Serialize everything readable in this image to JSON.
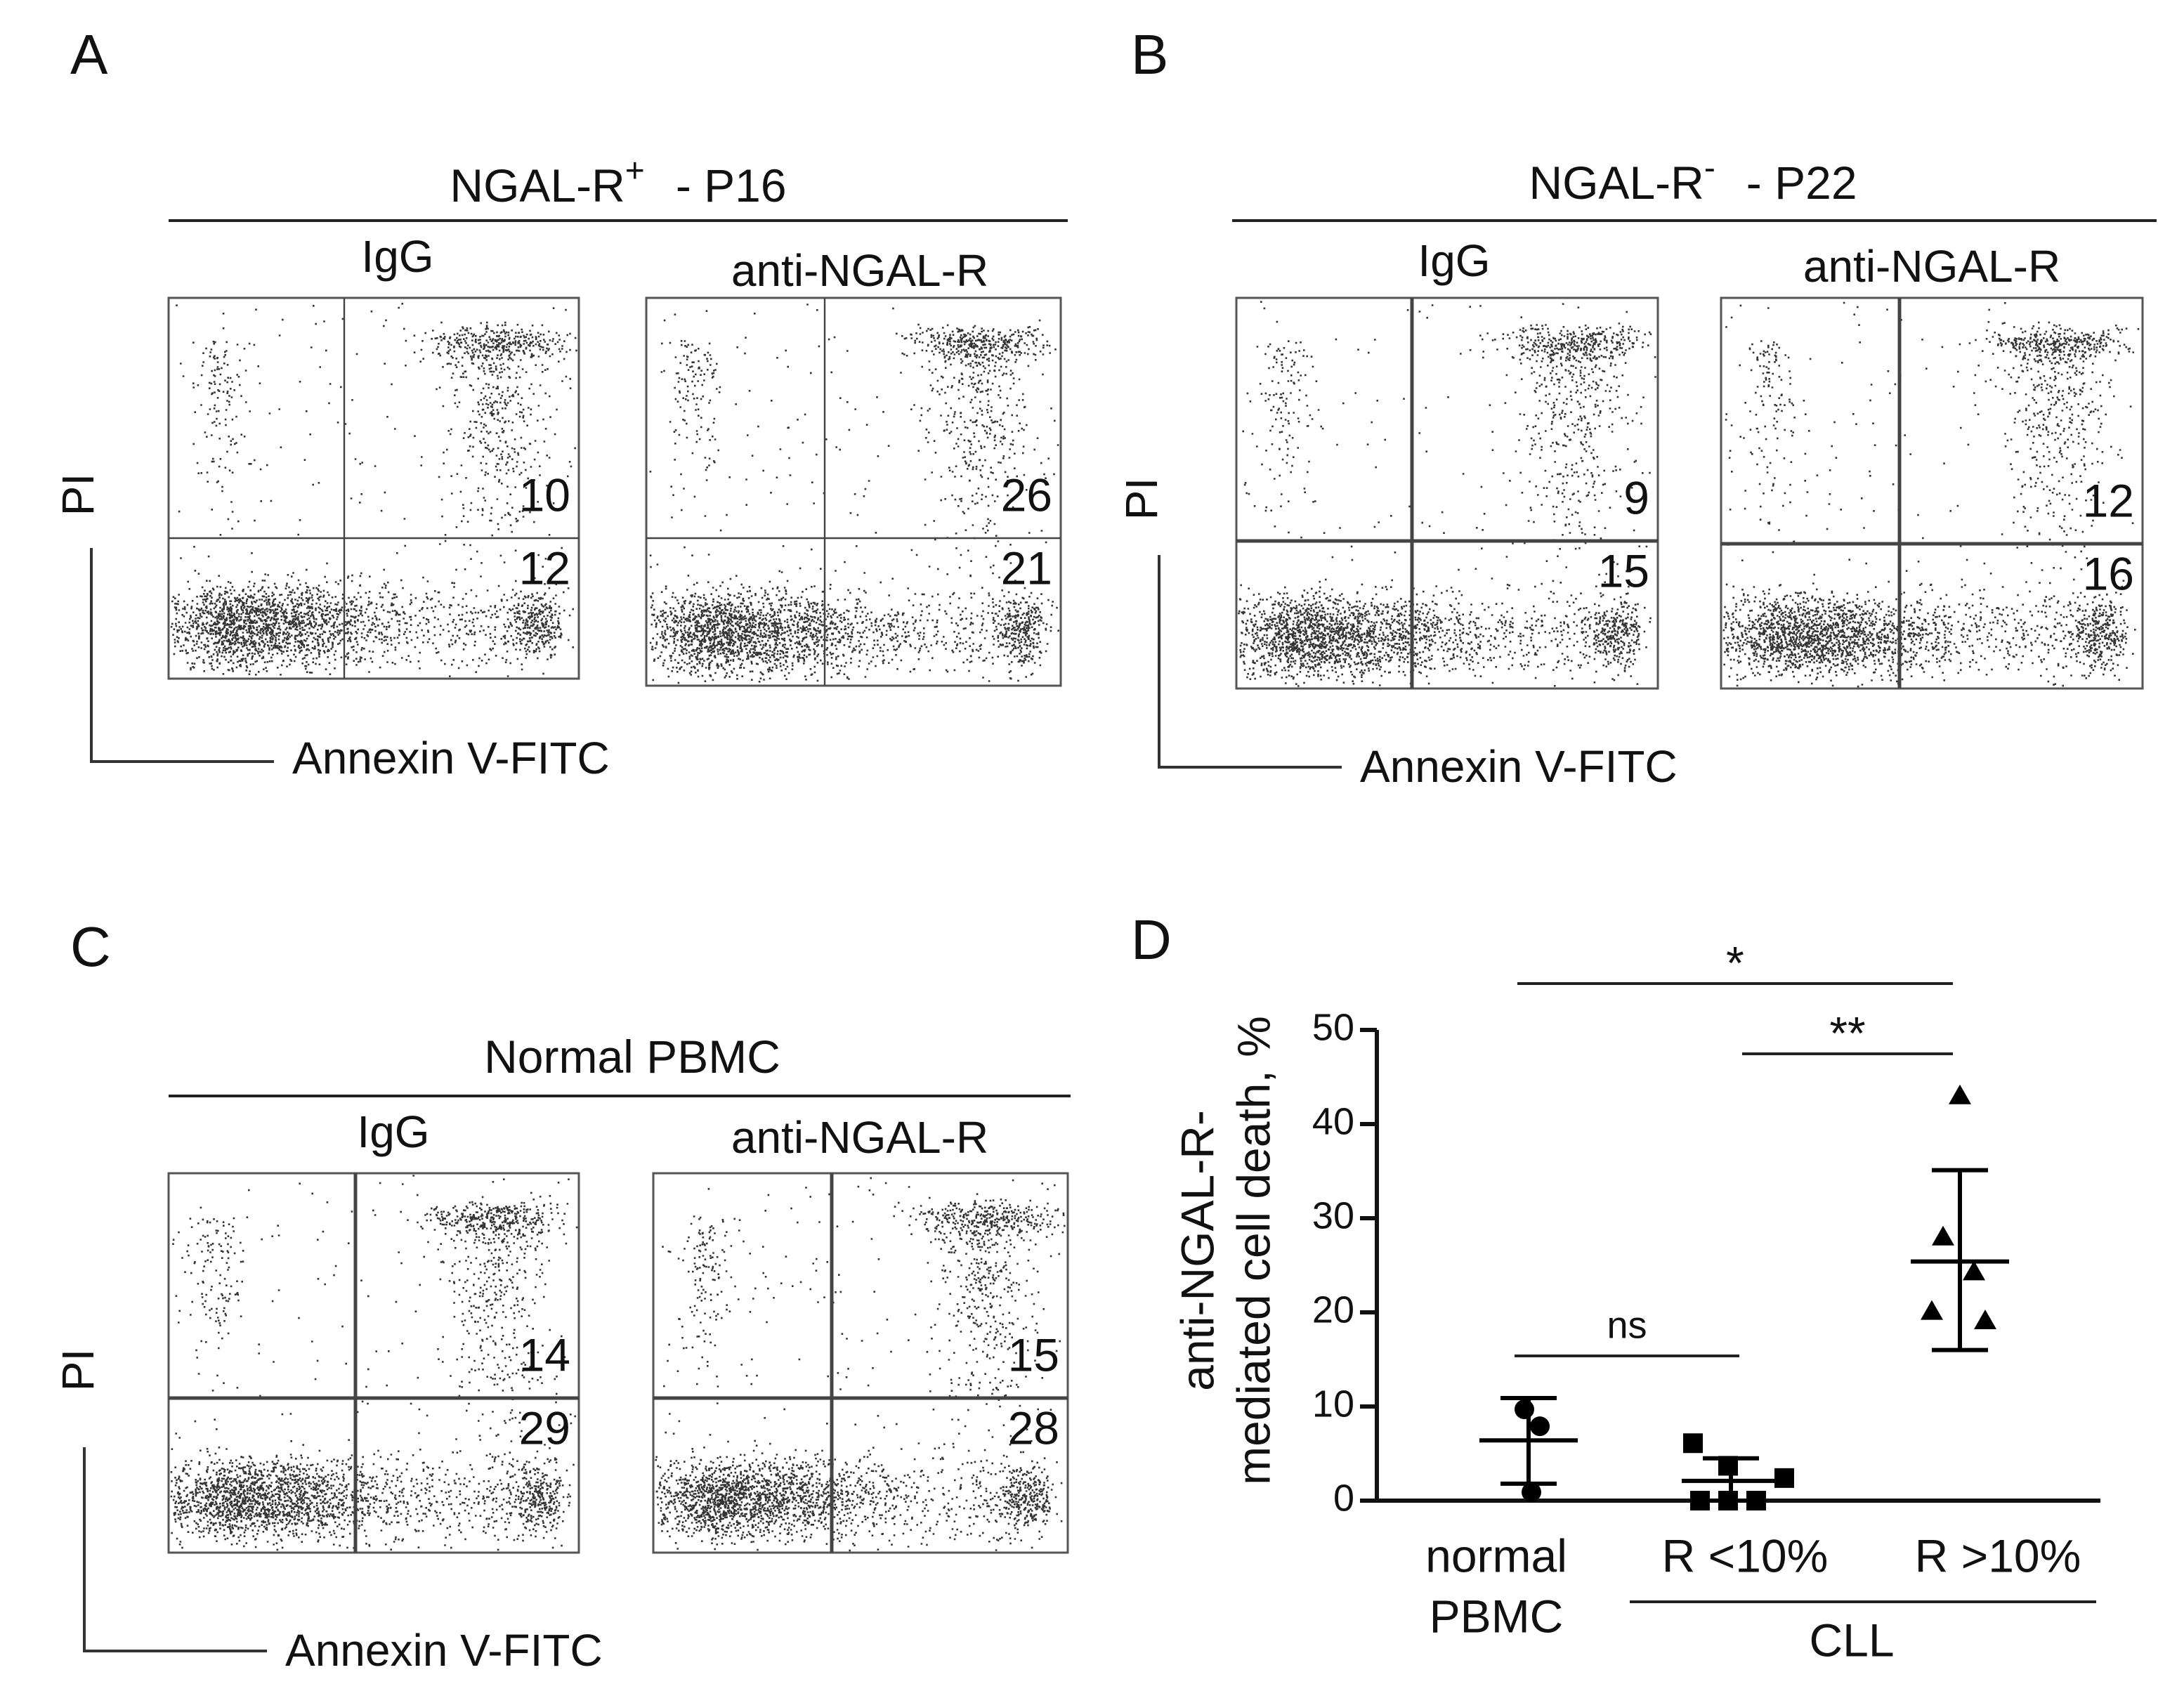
{
  "panels": [
    {
      "label": "A",
      "title": "NGAL-R",
      "title_sup": "+",
      "title_suffix": "-  P16",
      "y_label": "PI",
      "x_label": "Annexin V-FITC",
      "plots": [
        {
          "name": "IgG",
          "upper_right": 10,
          "lower_right": 12
        },
        {
          "name": "anti-NGAL-R",
          "upper_right": 26,
          "lower_right": 21
        }
      ]
    },
    {
      "label": "B",
      "title": "NGAL-R",
      "title_sup": "-",
      "title_suffix": "-  P22",
      "y_label": "PI",
      "x_label": "Annexin V-FITC",
      "plots": [
        {
          "name": "IgG",
          "upper_right": 9,
          "lower_right": 15
        },
        {
          "name": "anti-NGAL-R",
          "upper_right": 12,
          "lower_right": 16
        }
      ]
    },
    {
      "label": "C",
      "title": "Normal PBMC",
      "y_label": "PI",
      "x_label": "Annexin V-FITC",
      "plots": [
        {
          "name": "IgG",
          "upper_right": 14,
          "lower_right": 29
        },
        {
          "name": "anti-NGAL-R",
          "upper_right": 15,
          "lower_right": 28
        }
      ]
    }
  ],
  "chart_data": {
    "type": "dot-plot",
    "label": "D",
    "y_label": [
      "anti-NGAL-R-",
      "mediated cell death, %"
    ],
    "ylim": [
      0,
      50
    ],
    "yticks": [
      0,
      10,
      20,
      30,
      40,
      50
    ],
    "group_label": "CLL",
    "annotations": [
      "*",
      "**",
      "ns"
    ],
    "series": [
      {
        "name": [
          "normal",
          "PBMC"
        ],
        "marker": "circle",
        "color": "#000000",
        "values": [
          9.7,
          7.9,
          0.9
        ],
        "mean": 6.4,
        "sd_upper": 10.9,
        "sd_lower": 1.8
      },
      {
        "name": [
          "R <10%"
        ],
        "marker": "square",
        "color": "#000000",
        "values": [
          6.1,
          3.7,
          2.4,
          0,
          0,
          0
        ],
        "mean": 2.1,
        "sd_upper": 4.5,
        "sd_lower": 0
      },
      {
        "name": [
          "R >10%"
        ],
        "marker": "triangle",
        "color": "#000000",
        "values": [
          43,
          28,
          24.3,
          20.1,
          19.1
        ],
        "mean": 25.4,
        "sd_upper": 35.1,
        "sd_lower": 16
      }
    ]
  }
}
